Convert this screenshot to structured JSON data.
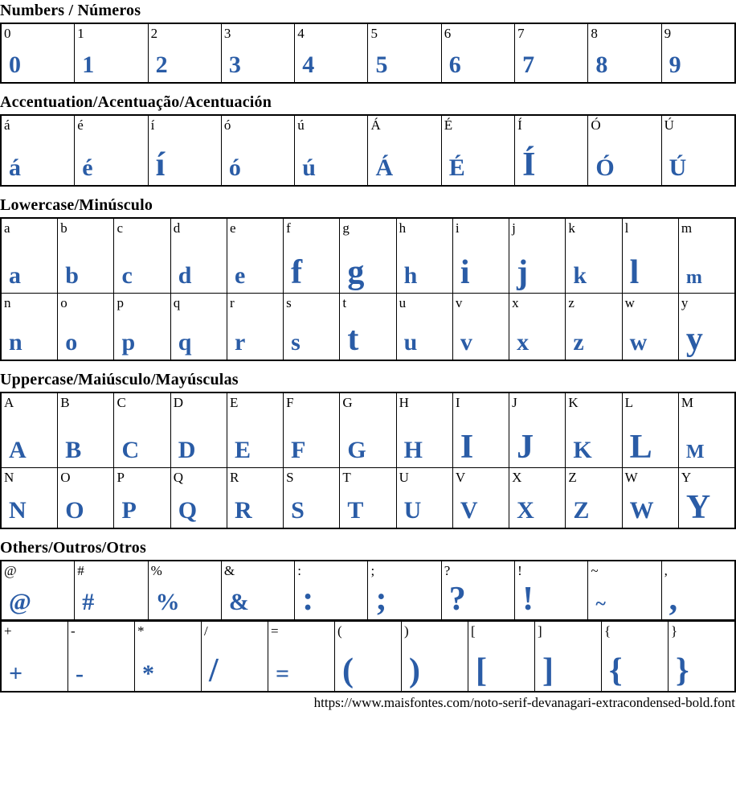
{
  "page": {
    "accent_color": "#2a5ca6",
    "border_color": "#000000",
    "footer_url": "https://www.maisfontes.com/noto-serif-devanagari-extracondensed-bold.font"
  },
  "sections": [
    {
      "id": "numbers",
      "title": "Numbers / Números",
      "rows": [
        [
          {
            "char": "0",
            "size": "md"
          },
          {
            "char": "1",
            "size": "md"
          },
          {
            "char": "2",
            "size": "md"
          },
          {
            "char": "3",
            "size": "md"
          },
          {
            "char": "4",
            "size": "md"
          },
          {
            "char": "5",
            "size": "md"
          },
          {
            "char": "6",
            "size": "md"
          },
          {
            "char": "7",
            "size": "md"
          },
          {
            "char": "8",
            "size": "md"
          },
          {
            "char": "9",
            "size": "md"
          }
        ]
      ]
    },
    {
      "id": "accentuation",
      "title": "Accentuation/Acentuação/Acentuación",
      "rows": [
        [
          {
            "char": "á",
            "size": "md"
          },
          {
            "char": "é",
            "size": "md"
          },
          {
            "char": "í",
            "size": "lg"
          },
          {
            "char": "ó",
            "size": "md"
          },
          {
            "char": "ú",
            "size": "md"
          },
          {
            "char": "Á",
            "size": "md"
          },
          {
            "char": "É",
            "size": "md"
          },
          {
            "char": "Í",
            "size": "lg"
          },
          {
            "char": "Ó",
            "size": "md"
          },
          {
            "char": "Ú",
            "size": "md"
          }
        ]
      ]
    },
    {
      "id": "lowercase",
      "title": "Lowercase/Minúsculo",
      "rows": [
        [
          {
            "char": "a",
            "size": "md"
          },
          {
            "char": "b",
            "size": "md"
          },
          {
            "char": "c",
            "size": "md"
          },
          {
            "char": "d",
            "size": "md"
          },
          {
            "char": "e",
            "size": "md"
          },
          {
            "char": "f",
            "size": "lg"
          },
          {
            "char": "g",
            "size": "lg"
          },
          {
            "char": "h",
            "size": "md"
          },
          {
            "char": "i",
            "size": "lg"
          },
          {
            "char": "j",
            "size": "lg"
          },
          {
            "char": "k",
            "size": "md"
          },
          {
            "char": "l",
            "size": "lg"
          },
          {
            "char": "m",
            "size": "sm"
          }
        ],
        [
          {
            "char": "n",
            "size": "md"
          },
          {
            "char": "o",
            "size": "md"
          },
          {
            "char": "p",
            "size": "md"
          },
          {
            "char": "q",
            "size": "md"
          },
          {
            "char": "r",
            "size": "md"
          },
          {
            "char": "s",
            "size": "md"
          },
          {
            "char": "t",
            "size": "lg"
          },
          {
            "char": "u",
            "size": "md"
          },
          {
            "char": "v",
            "size": "md"
          },
          {
            "char": "x",
            "size": "md"
          },
          {
            "char": "z",
            "size": "md"
          },
          {
            "char": "w",
            "size": "md"
          },
          {
            "char": "y",
            "size": "lg"
          }
        ]
      ]
    },
    {
      "id": "uppercase",
      "title": "Uppercase/Maiúsculo/Mayúsculas",
      "rows": [
        [
          {
            "char": "A",
            "size": "md"
          },
          {
            "char": "B",
            "size": "md"
          },
          {
            "char": "C",
            "size": "md"
          },
          {
            "char": "D",
            "size": "md"
          },
          {
            "char": "E",
            "size": "md"
          },
          {
            "char": "F",
            "size": "md"
          },
          {
            "char": "G",
            "size": "md"
          },
          {
            "char": "H",
            "size": "md"
          },
          {
            "char": "I",
            "size": "lg"
          },
          {
            "char": "J",
            "size": "lg"
          },
          {
            "char": "K",
            "size": "md"
          },
          {
            "char": "L",
            "size": "lg"
          },
          {
            "char": "M",
            "size": "sm"
          }
        ],
        [
          {
            "char": "N",
            "size": "md"
          },
          {
            "char": "O",
            "size": "md"
          },
          {
            "char": "P",
            "size": "md"
          },
          {
            "char": "Q",
            "size": "md"
          },
          {
            "char": "R",
            "size": "md"
          },
          {
            "char": "S",
            "size": "md"
          },
          {
            "char": "T",
            "size": "md"
          },
          {
            "char": "U",
            "size": "md"
          },
          {
            "char": "V",
            "size": "md"
          },
          {
            "char": "X",
            "size": "md"
          },
          {
            "char": "Z",
            "size": "md"
          },
          {
            "char": "W",
            "size": "md"
          },
          {
            "char": "Y",
            "size": "lg"
          }
        ]
      ]
    },
    {
      "id": "others",
      "title": "Others/Outros/Otros",
      "rows": [
        [
          {
            "char": "@",
            "size": "md"
          },
          {
            "char": "#",
            "size": "md"
          },
          {
            "char": "%",
            "size": "md"
          },
          {
            "char": "&",
            "size": "md"
          },
          {
            "char": ":",
            "size": "lg"
          },
          {
            "char": ";",
            "size": "lg"
          },
          {
            "char": "?",
            "size": "lg"
          },
          {
            "char": "!",
            "size": "lg"
          },
          {
            "char": "~",
            "size": "sm"
          },
          {
            "char": ",",
            "size": "lg"
          }
        ],
        [
          {
            "char": "+",
            "size": "md"
          },
          {
            "char": "-",
            "size": "md"
          },
          {
            "char": "*",
            "size": "md"
          },
          {
            "char": "/",
            "size": "lg"
          },
          {
            "char": "=",
            "size": "md"
          },
          {
            "char": "(",
            "size": "lg"
          },
          {
            "char": ")",
            "size": "lg"
          },
          {
            "char": "[",
            "size": "lg"
          },
          {
            "char": "]",
            "size": "lg"
          },
          {
            "char": "{",
            "size": "lg"
          },
          {
            "char": "}",
            "size": "lg"
          }
        ]
      ]
    }
  ]
}
